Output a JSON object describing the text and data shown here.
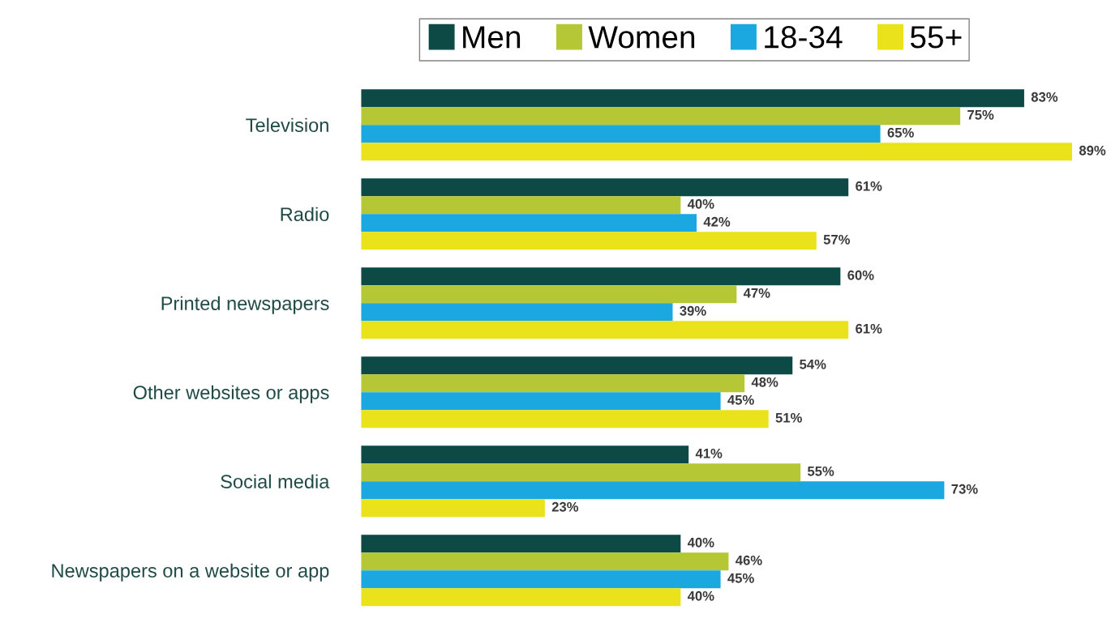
{
  "chart_data": {
    "type": "bar",
    "orientation": "horizontal",
    "legend": "top",
    "categories": [
      "Television",
      "Radio",
      "Printed newspapers",
      "Other websites or apps",
      "Social media",
      "Newspapers on a website or app"
    ],
    "series": [
      {
        "name": "Men",
        "color": "#0d4a45",
        "values": [
          83,
          61,
          60,
          54,
          41,
          40
        ],
        "value_labels": [
          "83%",
          "61%",
          "60%",
          "54%",
          "41%",
          "40%"
        ]
      },
      {
        "name": "Women",
        "color": "#b5c735",
        "values": [
          75,
          40,
          47,
          48,
          55,
          46
        ],
        "value_labels": [
          "75%",
          "40%",
          "47%",
          "48%",
          "55%",
          "46%"
        ]
      },
      {
        "name": "18-34",
        "color": "#1ba8e0",
        "values": [
          65,
          42,
          39,
          45,
          73,
          45
        ],
        "value_labels": [
          "65%",
          "42%",
          "39%",
          "45%",
          "73%",
          "45%"
        ]
      },
      {
        "name": "55+",
        "color": "#eae21a",
        "values": [
          89,
          57,
          61,
          51,
          23,
          40
        ],
        "value_labels": [
          "89%",
          "57%",
          "61%",
          "51%",
          "23%",
          "40%"
        ]
      }
    ]
  }
}
